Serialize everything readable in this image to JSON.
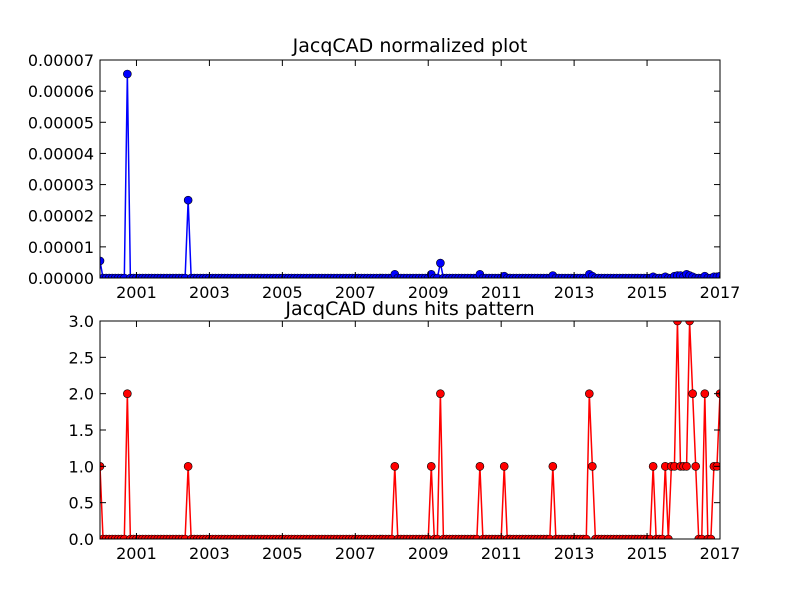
{
  "chart_data": [
    {
      "type": "line",
      "title": "JacqCAD normalized plot",
      "xlabel": "",
      "ylabel": "",
      "xlim": [
        2000.0,
        2017.0
      ],
      "ylim": [
        0,
        7e-05
      ],
      "grid": false,
      "x_tick_values": [
        2001,
        2003,
        2005,
        2007,
        2009,
        2011,
        2013,
        2015,
        2017
      ],
      "x_tick_labels": [
        "2001",
        "2003",
        "2005",
        "2007",
        "2009",
        "2011",
        "2013",
        "2015",
        "2017"
      ],
      "y_tick_values": [
        0,
        1e-05,
        2e-05,
        3e-05,
        4e-05,
        5e-05,
        6e-05,
        7e-05
      ],
      "y_tick_labels": [
        "0.00000",
        "0.00001",
        "0.00002",
        "0.00003",
        "0.00004",
        "0.00005",
        "0.00006",
        "0.00007"
      ],
      "series": [
        {
          "color": "#0000ff",
          "marker": "circle",
          "points": [
            {
              "x": 2000.0,
              "y": 5.5e-06
            },
            {
              "x": 2000.75,
              "y": 6.55e-05
            },
            {
              "x": 2002.42,
              "y": 2.5e-05
            },
            {
              "x": 2008.08,
              "y": 1.2e-06
            },
            {
              "x": 2009.08,
              "y": 1.2e-06
            },
            {
              "x": 2009.33,
              "y": 4.8e-06
            },
            {
              "x": 2010.42,
              "y": 1.2e-06
            },
            {
              "x": 2011.08,
              "y": 6e-07
            },
            {
              "x": 2012.42,
              "y": 8e-07
            },
            {
              "x": 2013.42,
              "y": 1.2e-06
            },
            {
              "x": 2013.5,
              "y": 6e-07
            },
            {
              "x": 2015.17,
              "y": 4e-07
            },
            {
              "x": 2015.5,
              "y": 4e-07
            },
            {
              "x": 2015.75,
              "y": 6e-07
            },
            {
              "x": 2015.83,
              "y": 8e-07
            },
            {
              "x": 2015.92,
              "y": 8e-07
            },
            {
              "x": 2016.0,
              "y": 4e-07
            },
            {
              "x": 2016.08,
              "y": 1.2e-06
            },
            {
              "x": 2016.17,
              "y": 8e-07
            },
            {
              "x": 2016.25,
              "y": 4e-07
            },
            {
              "x": 2016.58,
              "y": 6e-07
            },
            {
              "x": 2016.83,
              "y": 4e-07
            },
            {
              "x": 2016.92,
              "y": 4e-07
            },
            {
              "x": 2017.0,
              "y": 6e-07
            }
          ]
        }
      ]
    },
    {
      "type": "line",
      "title": "JacqCAD duns hits pattern",
      "xlabel": "",
      "ylabel": "",
      "xlim": [
        2000.0,
        2017.0
      ],
      "ylim": [
        0,
        3
      ],
      "grid": false,
      "x_tick_values": [
        2001,
        2003,
        2005,
        2007,
        2009,
        2011,
        2013,
        2015,
        2017
      ],
      "x_tick_labels": [
        "2001",
        "2003",
        "2005",
        "2007",
        "2009",
        "2011",
        "2013",
        "2015",
        "2017"
      ],
      "y_tick_values": [
        0,
        0.5,
        1,
        1.5,
        2,
        2.5,
        3
      ],
      "y_tick_labels": [
        "0.0",
        "0.5",
        "1.0",
        "1.5",
        "2.0",
        "2.5",
        "3.0"
      ],
      "series": [
        {
          "color": "#ff0000",
          "marker": "circle",
          "points": [
            {
              "x": 2000.0,
              "y": 1
            },
            {
              "x": 2000.75,
              "y": 2
            },
            {
              "x": 2002.42,
              "y": 1
            },
            {
              "x": 2008.08,
              "y": 1
            },
            {
              "x": 2009.08,
              "y": 1
            },
            {
              "x": 2009.33,
              "y": 2
            },
            {
              "x": 2010.42,
              "y": 1
            },
            {
              "x": 2011.08,
              "y": 1
            },
            {
              "x": 2012.42,
              "y": 1
            },
            {
              "x": 2013.42,
              "y": 2
            },
            {
              "x": 2013.5,
              "y": 1
            },
            {
              "x": 2015.17,
              "y": 1
            },
            {
              "x": 2015.5,
              "y": 1
            },
            {
              "x": 2015.67,
              "y": 1
            },
            {
              "x": 2015.75,
              "y": 1
            },
            {
              "x": 2015.83,
              "y": 3
            },
            {
              "x": 2015.92,
              "y": 1
            },
            {
              "x": 2016.0,
              "y": 1
            },
            {
              "x": 2016.08,
              "y": 1
            },
            {
              "x": 2016.17,
              "y": 3
            },
            {
              "x": 2016.25,
              "y": 2
            },
            {
              "x": 2016.33,
              "y": 1
            },
            {
              "x": 2016.58,
              "y": 2
            },
            {
              "x": 2016.83,
              "y": 1
            },
            {
              "x": 2016.92,
              "y": 1
            },
            {
              "x": 2017.0,
              "y": 2
            },
            {
              "x": 2017.08,
              "y": 2
            }
          ]
        }
      ]
    }
  ]
}
